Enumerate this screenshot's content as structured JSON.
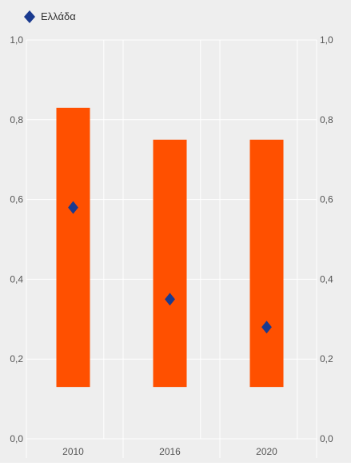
{
  "chart_data": {
    "type": "bar",
    "categories": [
      "2010",
      "2016",
      "2020"
    ],
    "ranges": [
      {
        "category": "2010",
        "low": 0.13,
        "high": 0.83
      },
      {
        "category": "2016",
        "low": 0.13,
        "high": 0.75
      },
      {
        "category": "2020",
        "low": 0.13,
        "high": 0.75
      }
    ],
    "series": [
      {
        "name": "Ελλάδα",
        "values": [
          0.58,
          0.35,
          0.28
        ]
      }
    ],
    "ylim": [
      0,
      1.0
    ],
    "yticks": [
      "0,0",
      "0,2",
      "0,4",
      "0,6",
      "0,8",
      "1,0"
    ],
    "tick_values": [
      0,
      0.2,
      0.4,
      0.6,
      0.8,
      1.0
    ],
    "legend_position": "top-left",
    "grid": true,
    "colors": {
      "range_bar": "#ff5000",
      "marker": "#1a3a8f",
      "plot_background": "#eeeeee",
      "grid": "#ffffff"
    }
  }
}
